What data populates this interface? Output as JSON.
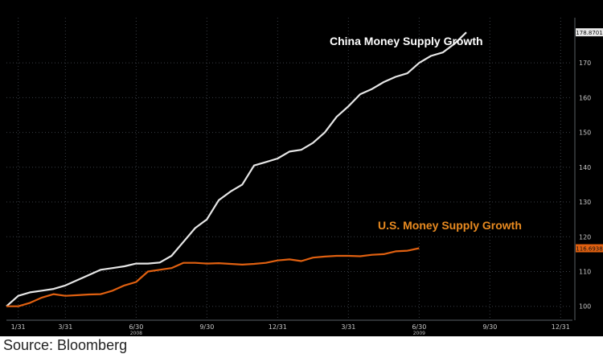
{
  "chart_data": {
    "type": "line",
    "title": "",
    "xlabel": "",
    "ylabel": "",
    "ylim": [
      96,
      183
    ],
    "y_ticks": [
      100,
      110,
      120,
      130,
      140,
      150,
      160,
      170
    ],
    "y_tick_labels": [
      "100",
      "110",
      "120",
      "130",
      "140",
      "150",
      "160",
      "170"
    ],
    "x_domain": [
      0,
      24
    ],
    "x_ticks": [
      {
        "label": "1/31",
        "x": 0.5
      },
      {
        "label": "3/31",
        "x": 2.5
      },
      {
        "label": "6/30",
        "x": 5.5
      },
      {
        "label": "9/30",
        "x": 8.5
      },
      {
        "label": "12/31",
        "x": 11.5
      },
      {
        "label": "3/31",
        "x": 14.5
      },
      {
        "label": "6/30",
        "x": 17.5
      },
      {
        "label": "9/30",
        "x": 20.5
      },
      {
        "label": "12/31",
        "x": 23.5
      }
    ],
    "x_year_labels": [
      {
        "label": "2008",
        "x": 5.5
      },
      {
        "label": "2009",
        "x": 17.5
      }
    ],
    "series": [
      {
        "name": "China Money Supply Growth",
        "color": "#e6e6e6",
        "last_value_label": "178.8701",
        "points": [
          [
            0,
            100
          ],
          [
            0.5,
            103
          ],
          [
            1,
            104
          ],
          [
            1.5,
            104.5
          ],
          [
            2,
            105
          ],
          [
            2.5,
            106
          ],
          [
            3,
            107.5
          ],
          [
            3.5,
            109
          ],
          [
            4,
            110.5
          ],
          [
            4.5,
            111
          ],
          [
            5,
            111.5
          ],
          [
            5.5,
            112.3
          ],
          [
            6,
            112.3
          ],
          [
            6.5,
            112.6
          ],
          [
            7,
            114.5
          ],
          [
            7.5,
            118.5
          ],
          [
            8,
            122.5
          ],
          [
            8.5,
            125
          ],
          [
            9,
            130.5
          ],
          [
            9.5,
            133
          ],
          [
            10,
            135
          ],
          [
            10.5,
            140.5
          ],
          [
            11,
            141.5
          ],
          [
            11.5,
            142.5
          ],
          [
            12,
            144.5
          ],
          [
            12.5,
            145
          ],
          [
            13,
            147
          ],
          [
            13.5,
            150
          ],
          [
            14,
            154.5
          ],
          [
            14.5,
            157.5
          ],
          [
            15,
            161
          ],
          [
            15.5,
            162.5
          ],
          [
            16,
            164.5
          ],
          [
            16.5,
            166
          ],
          [
            17,
            167
          ],
          [
            17.5,
            170
          ],
          [
            18,
            172
          ],
          [
            18.5,
            173
          ],
          [
            19,
            175.5
          ],
          [
            19.5,
            178.8
          ]
        ]
      },
      {
        "name": "U.S. Money Supply Growth",
        "color": "#e06010",
        "last_value_label": "116.6938",
        "points": [
          [
            0,
            100
          ],
          [
            0.5,
            100
          ],
          [
            1,
            101
          ],
          [
            1.5,
            102.5
          ],
          [
            2,
            103.5
          ],
          [
            2.5,
            103
          ],
          [
            3,
            103.2
          ],
          [
            3.5,
            103.4
          ],
          [
            4,
            103.5
          ],
          [
            4.5,
            104.5
          ],
          [
            5,
            106
          ],
          [
            5.5,
            107
          ],
          [
            6,
            110
          ],
          [
            6.5,
            110.5
          ],
          [
            7,
            111
          ],
          [
            7.5,
            112.5
          ],
          [
            8,
            112.5
          ],
          [
            8.5,
            112.3
          ],
          [
            9,
            112.4
          ],
          [
            9.5,
            112.2
          ],
          [
            10,
            112
          ],
          [
            10.5,
            112.2
          ],
          [
            11,
            112.5
          ],
          [
            11.5,
            113.2
          ],
          [
            12,
            113.5
          ],
          [
            12.5,
            113
          ],
          [
            13,
            114
          ],
          [
            13.5,
            114.3
          ],
          [
            14,
            114.5
          ],
          [
            14.5,
            114.5
          ],
          [
            15,
            114.4
          ],
          [
            15.5,
            114.8
          ],
          [
            16,
            115
          ],
          [
            16.5,
            115.8
          ],
          [
            17,
            116
          ],
          [
            17.5,
            116.7
          ]
        ]
      }
    ],
    "annotations": [
      {
        "text": "China Money Supply Growth",
        "color": "#ffffff"
      },
      {
        "text": "U.S. Money Supply Growth",
        "color": "#e88a20"
      }
    ]
  },
  "source_text": "Source: Bloomberg"
}
